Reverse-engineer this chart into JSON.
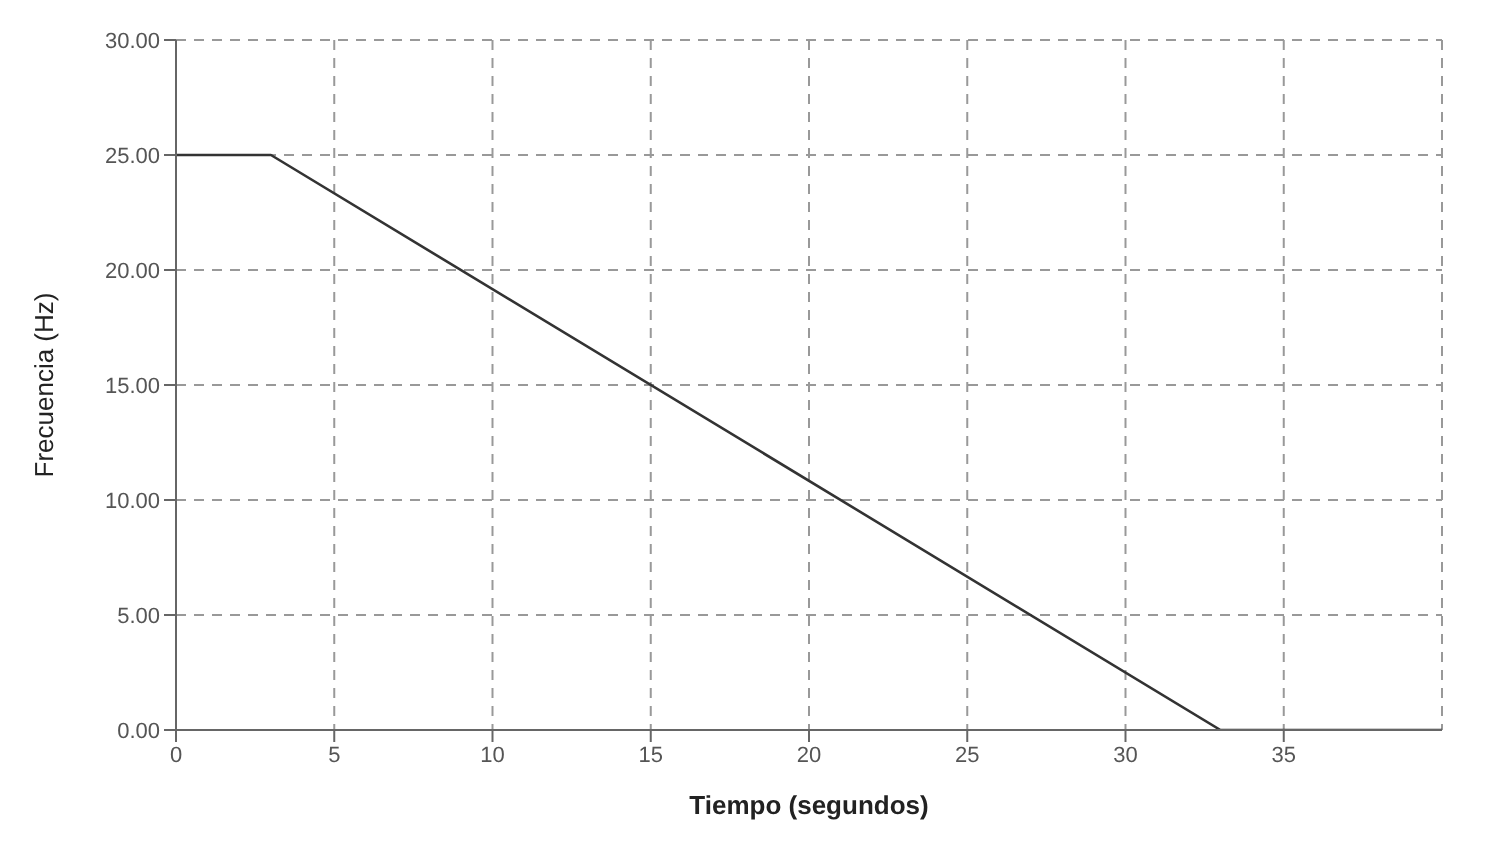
{
  "chart_data": {
    "type": "line",
    "xlabel": "Tiempo (segundos)",
    "ylabel": "Frecuencia (Hz)",
    "x": [
      0,
      3,
      33,
      40
    ],
    "series": [
      {
        "color": "#333333",
        "values": [
          25,
          25,
          0,
          0
        ]
      }
    ],
    "xlim": [
      0,
      40
    ],
    "xticks": [
      0,
      5,
      10,
      15,
      20,
      25,
      30,
      35
    ],
    "ylim": [
      0,
      30
    ],
    "yticks": [
      {
        "value": 0,
        "label": "0.00"
      },
      {
        "value": 5,
        "label": "5.00"
      },
      {
        "value": 10,
        "label": "10.00"
      },
      {
        "value": 15,
        "label": "15.00"
      },
      {
        "value": 20,
        "label": "20.00"
      },
      {
        "value": 25,
        "label": "25.00"
      },
      {
        "value": 30,
        "label": "30.00"
      }
    ],
    "grid": true,
    "line_style": "solid",
    "marker": "none"
  }
}
